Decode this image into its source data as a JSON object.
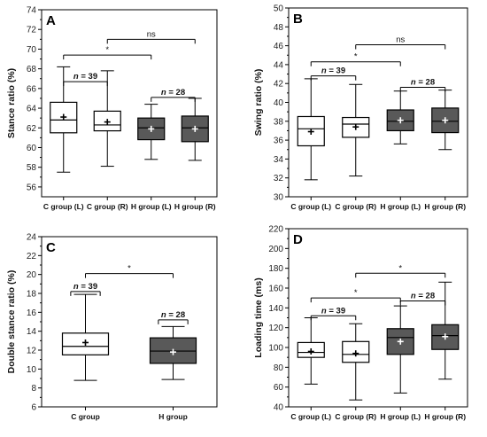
{
  "chart_data": [
    {
      "panel": "A",
      "type": "box",
      "ylabel": "Stance ratio (%)",
      "ylim": [
        55,
        74
      ],
      "yticks": [
        56,
        58,
        60,
        62,
        64,
        66,
        68,
        70,
        72,
        74
      ],
      "categories": [
        "C group (L)",
        "C group (R)",
        "H group (L)",
        "H group (R)"
      ],
      "fills": [
        "#ffffff",
        "#ffffff",
        "#595959",
        "#595959"
      ],
      "boxes": [
        {
          "min": 57.5,
          "q1": 61.5,
          "median": 62.8,
          "q3": 64.6,
          "max": 68.2,
          "mean": 63.1
        },
        {
          "min": 58.1,
          "q1": 61.7,
          "median": 62.3,
          "q3": 63.7,
          "max": 67.8,
          "mean": 62.6
        },
        {
          "min": 58.8,
          "q1": 60.8,
          "median": 62.0,
          "q3": 63.0,
          "max": 64.4,
          "mean": 61.9
        },
        {
          "min": 58.7,
          "q1": 60.6,
          "median": 62.0,
          "q3": 63.2,
          "max": 65.0,
          "mean": 61.9
        }
      ],
      "brackets": [
        {
          "from": 0,
          "to": 2,
          "y": 69.4,
          "label": "*",
          "nlabel": false
        },
        {
          "from": 1,
          "to": 3,
          "y": 71.0,
          "label": "ns",
          "nlabel": false
        },
        {
          "from": 0,
          "to": 1,
          "y": 66.7,
          "label": "39",
          "nlabel": true
        },
        {
          "from": 2,
          "to": 3,
          "y": 65.1,
          "label": "28",
          "nlabel": true
        }
      ]
    },
    {
      "panel": "B",
      "type": "box",
      "ylabel": "Swing ratio (%)",
      "ylim": [
        30,
        50
      ],
      "yticks": [
        30,
        32,
        34,
        36,
        38,
        40,
        42,
        44,
        46,
        48,
        50
      ],
      "categories": [
        "C group (L)",
        "C group (R)",
        "H group (L)",
        "H group (R)"
      ],
      "fills": [
        "#ffffff",
        "#ffffff",
        "#595959",
        "#595959"
      ],
      "boxes": [
        {
          "min": 31.8,
          "q1": 35.4,
          "median": 37.2,
          "q3": 38.5,
          "max": 42.5,
          "mean": 36.9
        },
        {
          "min": 32.2,
          "q1": 36.3,
          "median": 37.7,
          "q3": 38.4,
          "max": 41.9,
          "mean": 37.4
        },
        {
          "min": 35.6,
          "q1": 37.0,
          "median": 38.0,
          "q3": 39.2,
          "max": 41.2,
          "mean": 38.1
        },
        {
          "min": 35.0,
          "q1": 36.8,
          "median": 38.0,
          "q3": 39.4,
          "max": 41.3,
          "mean": 38.1
        }
      ],
      "brackets": [
        {
          "from": 0,
          "to": 2,
          "y": 44.3,
          "label": "*",
          "nlabel": false
        },
        {
          "from": 1,
          "to": 3,
          "y": 46.1,
          "label": "ns",
          "nlabel": false
        },
        {
          "from": 0,
          "to": 1,
          "y": 42.8,
          "label": "39",
          "nlabel": true
        },
        {
          "from": 2,
          "to": 3,
          "y": 41.6,
          "label": "28",
          "nlabel": true
        }
      ]
    },
    {
      "panel": "C",
      "type": "box",
      "ylabel": "Double stance ratio (%)",
      "ylim": [
        6,
        24
      ],
      "yticks": [
        6,
        8,
        10,
        12,
        14,
        16,
        18,
        20,
        22,
        24
      ],
      "categories": [
        "C group",
        "H group"
      ],
      "fills": [
        "#ffffff",
        "#595959"
      ],
      "boxes": [
        {
          "min": 8.8,
          "q1": 11.5,
          "median": 12.4,
          "q3": 13.8,
          "max": 17.9,
          "mean": 12.8
        },
        {
          "min": 8.9,
          "q1": 10.6,
          "median": 11.9,
          "q3": 13.3,
          "max": 14.5,
          "mean": 11.8
        }
      ],
      "brackets": [
        {
          "from": 0,
          "to": 1,
          "y": 20.1,
          "label": "*",
          "nlabel": false
        },
        {
          "from": 0,
          "to": 0,
          "y": 18.2,
          "label": "39",
          "nlabel": true
        },
        {
          "from": 1,
          "to": 1,
          "y": 15.2,
          "label": "28",
          "nlabel": true
        }
      ]
    },
    {
      "panel": "D",
      "type": "box",
      "ylabel": "Loading time (ms)",
      "ylim": [
        40,
        220
      ],
      "yticks": [
        40,
        60,
        80,
        100,
        120,
        140,
        160,
        180,
        200,
        220
      ],
      "categories": [
        "C group (L)",
        "C group (R)",
        "H group (L)",
        "H group (R)"
      ],
      "fills": [
        "#ffffff",
        "#ffffff",
        "#595959",
        "#595959"
      ],
      "boxes": [
        {
          "min": 63,
          "q1": 90,
          "median": 95,
          "q3": 105,
          "max": 130,
          "mean": 96
        },
        {
          "min": 47,
          "q1": 85,
          "median": 93,
          "q3": 106,
          "max": 124,
          "mean": 94
        },
        {
          "min": 54,
          "q1": 93,
          "median": 110,
          "q3": 119,
          "max": 142,
          "mean": 106
        },
        {
          "min": 68,
          "q1": 98,
          "median": 112,
          "q3": 123,
          "max": 166,
          "mean": 111
        }
      ],
      "brackets": [
        {
          "from": 1,
          "to": 3,
          "y": 175,
          "label": "*",
          "nlabel": false
        },
        {
          "from": 0,
          "to": 2,
          "y": 150,
          "label": "*",
          "nlabel": false
        },
        {
          "from": 0,
          "to": 1,
          "y": 132,
          "label": "39",
          "nlabel": true
        },
        {
          "from": 2,
          "to": 3,
          "y": 147,
          "label": "28",
          "nlabel": true
        }
      ]
    }
  ]
}
